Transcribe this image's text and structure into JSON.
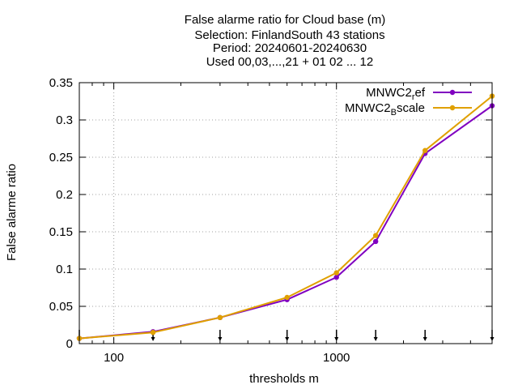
{
  "chart_data": {
    "type": "line",
    "title_lines": [
      "False alarme ratio  for Cloud base (m)",
      "Selection: FinlandSouth     43 stations",
      "Period: 20240601-20240630",
      "Used 00,03,...,21 + 01 02 ... 12"
    ],
    "xlabel": "thresholds m",
    "ylabel": "False alarme ratio",
    "x_scale": "log",
    "xlim": [
      70,
      5000
    ],
    "ylim": [
      0,
      0.35
    ],
    "x_ticks": [
      100,
      1000
    ],
    "x_tick_labels": [
      "100",
      "1000"
    ],
    "y_ticks": [
      0,
      0.05,
      0.1,
      0.15,
      0.2,
      0.25,
      0.3,
      0.35
    ],
    "y_tick_labels": [
      "0",
      "0.05",
      "0.1",
      "0.15",
      "0.2",
      "0.25",
      "0.3",
      "0.35"
    ],
    "grid": true,
    "legend_position": "top-right",
    "threshold_markers": [
      70,
      150,
      300,
      600,
      1000,
      1500,
      2500,
      5000
    ],
    "series": [
      {
        "name_base": "MNWC2",
        "name_sub": "r",
        "name_rest": "ef",
        "color": "#8000c0",
        "x": [
          70,
          150,
          300,
          600,
          1000,
          1500,
          2500,
          5000
        ],
        "values": [
          0.007,
          0.016,
          0.035,
          0.059,
          0.089,
          0.137,
          0.255,
          0.319
        ]
      },
      {
        "name_base": "MNWC2",
        "name_sub": "B",
        "name_rest": "scale",
        "color": "#e0a000",
        "x": [
          70,
          150,
          300,
          600,
          1000,
          1500,
          2500,
          5000
        ],
        "values": [
          0.007,
          0.015,
          0.035,
          0.062,
          0.095,
          0.145,
          0.259,
          0.332
        ]
      }
    ]
  }
}
